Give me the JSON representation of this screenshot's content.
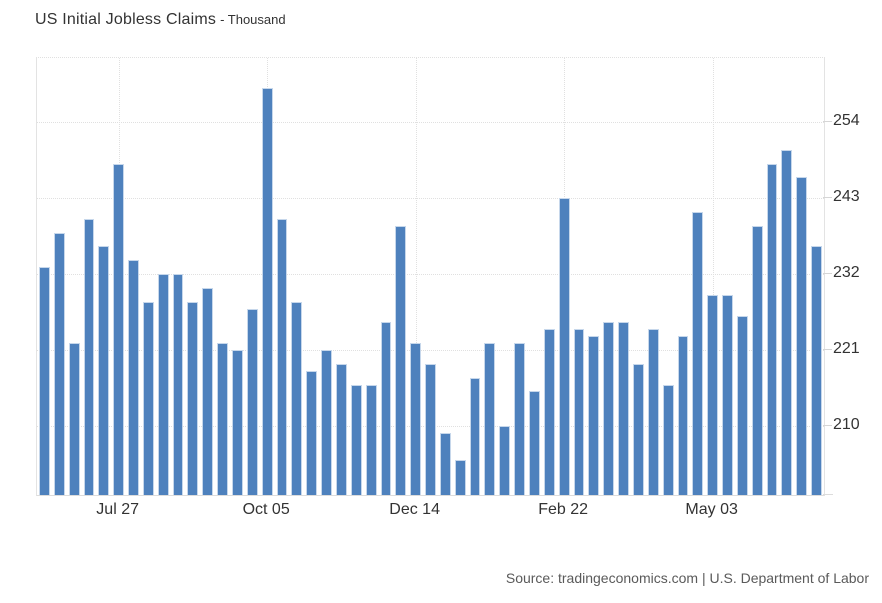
{
  "header": {
    "title": "US Initial Jobless Claims",
    "subtitle": "- Thousand"
  },
  "footer": {
    "source": "Source: tradingeconomics.com | U.S. Department of Labor"
  },
  "chart_data": {
    "type": "bar",
    "title": "US Initial Jobless Claims",
    "subtitle_unit": "Thousand",
    "values": [
      233,
      238,
      222,
      240,
      236,
      248,
      234,
      228,
      232,
      232,
      228,
      230,
      222,
      221,
      227,
      259,
      240,
      228,
      218,
      221,
      219,
      216,
      216,
      225,
      239,
      222,
      219,
      209,
      205,
      217,
      222,
      210,
      222,
      215,
      224,
      243,
      224,
      223,
      225,
      225,
      219,
      224,
      216,
      223,
      241,
      229,
      229,
      226,
      239,
      248,
      250,
      246,
      236
    ],
    "x_tick_labels": [
      "Jul 27",
      "Oct 05",
      "Dec 14",
      "Feb 22",
      "May 03"
    ],
    "x_tick_indices": [
      5,
      15,
      25,
      35,
      45
    ],
    "y_ticks": [
      254,
      243,
      232,
      221,
      210
    ],
    "ylim": [
      200,
      263.3
    ],
    "grid": "dotted",
    "legend": "none",
    "bar_color": "#4e81bd",
    "bar_border_color": "#c6d7eb",
    "axis_label_color": "#333333",
    "source": "Source: tradingeconomics.com | U.S. Department of Labor"
  }
}
